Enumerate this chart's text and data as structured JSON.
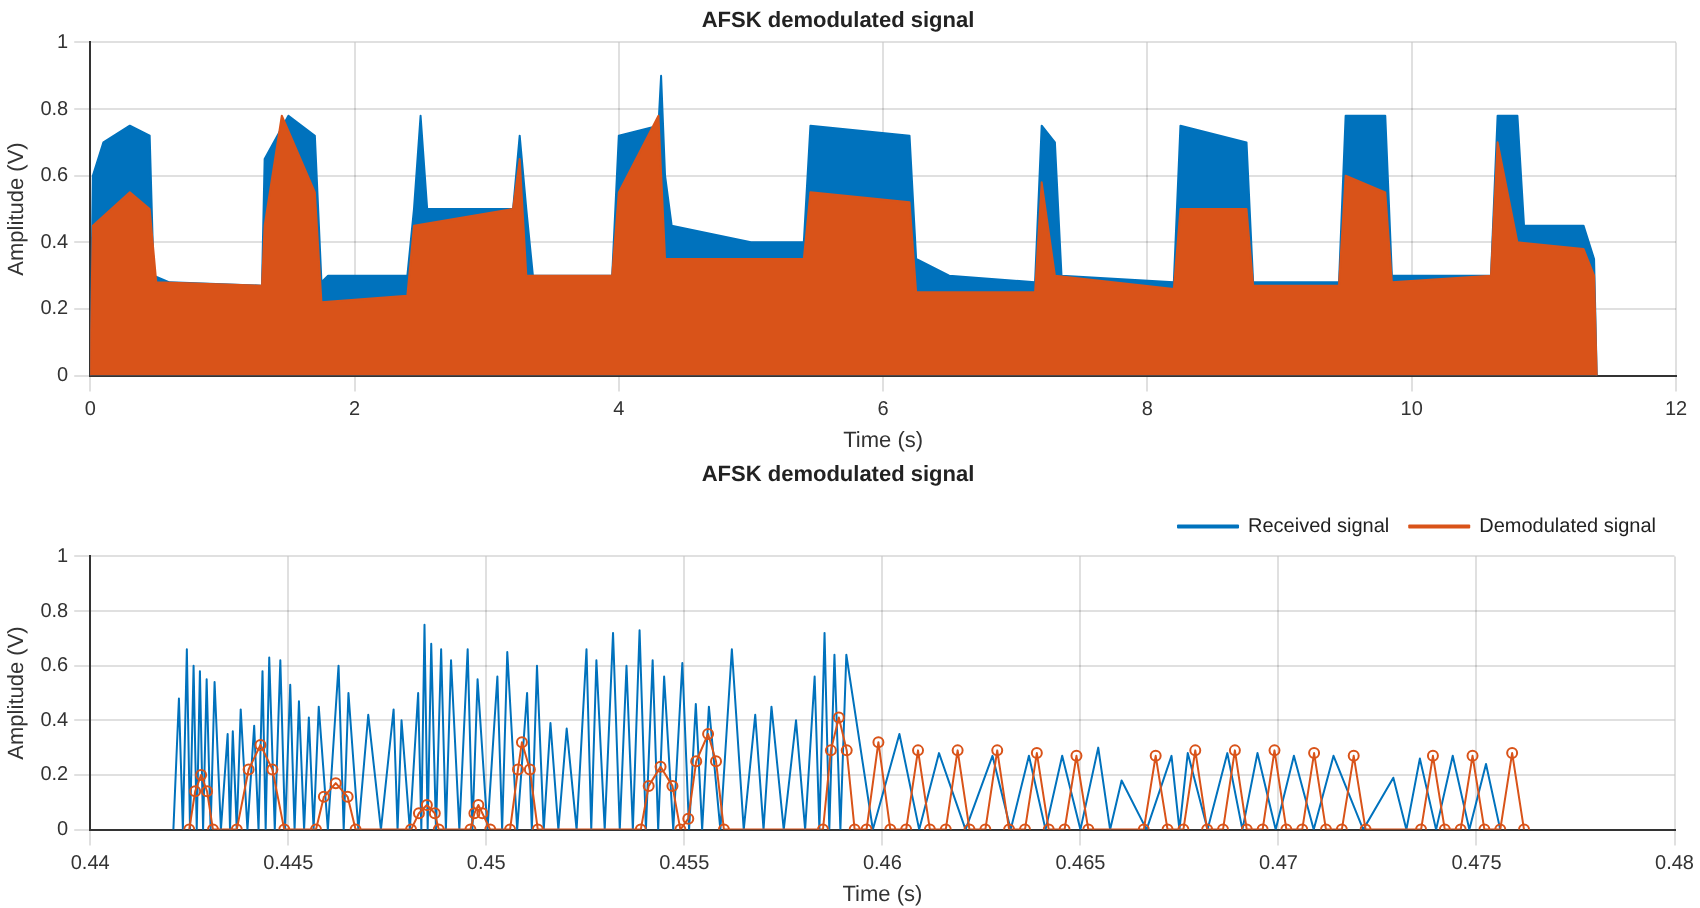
{
  "chart_data": [
    {
      "type": "area",
      "title": "AFSK demodulated signal",
      "xlabel": "Time (s)",
      "ylabel": "Amplitude (V)",
      "xlim": [
        0,
        12
      ],
      "xticks": [
        0,
        2,
        4,
        6,
        8,
        10,
        12
      ],
      "ylim": [
        0,
        1
      ],
      "yticks": [
        0,
        0.2,
        0.4,
        0.6,
        0.8,
        1
      ],
      "grid": true,
      "series": [
        {
          "color": "#0072bd",
          "x": [
            0,
            0.02,
            0.1,
            0.3,
            0.45,
            0.48,
            0.6,
            1.3,
            1.32,
            1.5,
            1.7,
            1.75,
            1.8,
            2.4,
            2.45,
            2.5,
            2.55,
            3.2,
            3.25,
            3.3,
            3.35,
            3.95,
            4.0,
            4.3,
            4.32,
            4.35,
            4.4,
            5.0,
            5.4,
            5.45,
            6.2,
            6.25,
            6.5,
            7.15,
            7.2,
            7.3,
            7.35,
            8.2,
            8.25,
            8.75,
            8.8,
            9.45,
            9.5,
            9.8,
            9.85,
            10.6,
            10.65,
            10.8,
            10.85,
            11.3,
            11.38,
            11.4
          ],
          "values": [
            0,
            0.6,
            0.7,
            0.75,
            0.72,
            0.3,
            0.28,
            0.27,
            0.65,
            0.78,
            0.72,
            0.28,
            0.3,
            0.3,
            0.5,
            0.78,
            0.5,
            0.5,
            0.72,
            0.5,
            0.3,
            0.3,
            0.72,
            0.75,
            0.9,
            0.6,
            0.45,
            0.4,
            0.4,
            0.75,
            0.72,
            0.35,
            0.3,
            0.28,
            0.75,
            0.7,
            0.3,
            0.28,
            0.75,
            0.7,
            0.28,
            0.28,
            0.78,
            0.78,
            0.3,
            0.3,
            0.78,
            0.78,
            0.45,
            0.45,
            0.35,
            0
          ]
        },
        {
          "color": "#d95319",
          "x": [
            0,
            0.02,
            0.3,
            0.45,
            0.5,
            1.3,
            1.32,
            1.45,
            1.7,
            1.75,
            2.4,
            2.45,
            3.2,
            3.25,
            3.3,
            3.95,
            4.0,
            4.3,
            4.35,
            5.4,
            5.45,
            6.2,
            6.25,
            7.15,
            7.2,
            7.3,
            8.2,
            8.25,
            8.75,
            8.8,
            9.45,
            9.5,
            9.8,
            9.85,
            10.6,
            10.65,
            10.8,
            11.3,
            11.38,
            11.4
          ],
          "values": [
            0,
            0.45,
            0.55,
            0.5,
            0.28,
            0.27,
            0.45,
            0.78,
            0.55,
            0.22,
            0.24,
            0.45,
            0.5,
            0.65,
            0.3,
            0.3,
            0.55,
            0.78,
            0.35,
            0.35,
            0.55,
            0.52,
            0.25,
            0.25,
            0.58,
            0.3,
            0.26,
            0.5,
            0.5,
            0.27,
            0.27,
            0.6,
            0.55,
            0.28,
            0.3,
            0.7,
            0.4,
            0.38,
            0.3,
            0
          ]
        }
      ]
    },
    {
      "type": "line",
      "title": "AFSK demodulated signal",
      "xlabel": "Time (s)",
      "ylabel": "Amplitude (V)",
      "xlim": [
        0.44,
        0.48
      ],
      "xticks": [
        0.44,
        0.445,
        0.45,
        0.455,
        0.46,
        0.465,
        0.47,
        0.475,
        0.48
      ],
      "ylim": [
        0,
        1
      ],
      "yticks": [
        0,
        0.2,
        0.4,
        0.6,
        0.8,
        1
      ],
      "grid": true,
      "legend": "top right",
      "series": [
        {
          "name": "Received signal",
          "color": "#0072bd",
          "marker": "none",
          "x": [
            0.4421,
            0.44224,
            0.44234,
            0.44244,
            0.44252,
            0.44261,
            0.44269,
            0.44277,
            0.44285,
            0.44294,
            0.44304,
            0.44314,
            0.4433,
            0.44347,
            0.44353,
            0.4436,
            0.4437,
            0.4438,
            0.44397,
            0.44414,
            0.44425,
            0.44435,
            0.44443,
            0.44452,
            0.44466,
            0.4448,
            0.44492,
            0.44505,
            0.44516,
            0.44527,
            0.4454,
            0.44552,
            0.44564,
            0.44577,
            0.446,
            0.44627,
            0.4464,
            0.44652,
            0.44677,
            0.44702,
            0.44734,
            0.44766,
            0.44776,
            0.44786,
            0.44807,
            0.44828,
            0.44836,
            0.44844,
            0.44852,
            0.44861,
            0.44873,
            0.44886,
            0.44898,
            0.44911,
            0.44932,
            0.44953,
            0.44965,
            0.44978,
            0.45003,
            0.45028,
            0.4504,
            0.45053,
            0.45078,
            0.45103,
            0.45115,
            0.45128,
            0.45145,
            0.45162,
            0.45182,
            0.45203,
            0.45228,
            0.45253,
            0.45265,
            0.45278,
            0.45299,
            0.4532,
            0.45337,
            0.45354,
            0.4537,
            0.45387,
            0.45403,
            0.4542,
            0.45434,
            0.45449,
            0.45472,
            0.45495,
            0.45512,
            0.45529,
            0.45545,
            0.45562,
            0.45591,
            0.4562,
            0.4565,
            0.45679,
            0.457,
            0.4572,
            0.45751,
            0.45782,
            0.45805,
            0.45829,
            0.45841,
            0.45854,
            0.45866,
            0.45879,
            0.45894,
            0.45909,
            0.45976,
            0.46043,
            0.46093,
            0.46143,
            0.4621,
            0.46278,
            0.46324,
            0.4637,
            0.46412,
            0.46454,
            0.465,
            0.46545,
            0.46575,
            0.46604,
            0.46667,
            0.4673,
            0.4675,
            0.46771,
            0.46821,
            0.46871,
            0.46909,
            0.46947,
            0.46993,
            0.47039,
            0.47089,
            0.47139,
            0.47214,
            0.4729,
            0.47323,
            0.47357,
            0.47398,
            0.4744,
            0.47482,
            0.47524,
            0.4756
          ],
          "values": [
            0,
            0.48,
            0,
            0.66,
            0,
            0.6,
            0,
            0.58,
            0,
            0.55,
            0,
            0.54,
            0,
            0.35,
            0,
            0.36,
            0,
            0.44,
            0,
            0.38,
            0,
            0.58,
            0,
            0.63,
            0,
            0.62,
            0,
            0.53,
            0,
            0.47,
            0,
            0.41,
            0,
            0.45,
            0,
            0.6,
            0,
            0.5,
            0,
            0.42,
            0,
            0.44,
            0,
            0.4,
            0,
            0.5,
            0,
            0.75,
            0,
            0.68,
            0,
            0.66,
            0,
            0.62,
            0,
            0.66,
            0,
            0.55,
            0,
            0.56,
            0,
            0.65,
            0,
            0.5,
            0,
            0.6,
            0,
            0.39,
            0,
            0.37,
            0,
            0.66,
            0,
            0.62,
            0,
            0.72,
            0,
            0.6,
            0,
            0.73,
            0,
            0.62,
            0,
            0.56,
            0,
            0.61,
            0,
            0.46,
            0,
            0.45,
            0,
            0.66,
            0,
            0.42,
            0,
            0.45,
            0,
            0.4,
            0,
            0.56,
            0,
            0.72,
            0,
            0.64,
            0,
            0.64,
            0,
            0.35,
            0,
            0.28,
            0,
            0.27,
            0,
            0.27,
            0,
            0.27,
            0,
            0.3,
            0,
            0.18,
            0,
            0.27,
            0,
            0.28,
            0,
            0.28,
            0,
            0.28,
            0,
            0.27,
            0,
            0.27,
            0,
            0.19,
            0,
            0.26,
            0,
            0.27,
            0,
            0.24,
            0
          ]
        },
        {
          "name": "Demodulated signal",
          "color": "#d95319",
          "marker": "circle",
          "x": [
            0.4425,
            0.44265,
            0.4428,
            0.44295,
            0.4431,
            0.4437,
            0.444,
            0.4443,
            0.4446,
            0.4449,
            0.4457,
            0.4459,
            0.4462,
            0.4465,
            0.4467,
            0.4481,
            0.4483,
            0.4485,
            0.4487,
            0.4488,
            0.4496,
            0.4497,
            0.4498,
            0.4499,
            0.4501,
            0.4506,
            0.4508,
            0.4509,
            0.4511,
            0.4513,
            0.4539,
            0.4541,
            0.4544,
            0.4547,
            0.4549,
            0.4551,
            0.4553,
            0.4556,
            0.4558,
            0.456,
            0.4585,
            0.4587,
            0.4589,
            0.4591,
            0.4593,
            0.4596,
            0.4599,
            0.4602,
            0.4606,
            0.4609,
            0.4612,
            0.4616,
            0.4619,
            0.4622,
            0.4626,
            0.4629,
            0.4632,
            0.4636,
            0.4639,
            0.4642,
            0.4646,
            0.4649,
            0.4652,
            0.4666,
            0.4669,
            0.4672,
            0.4676,
            0.4679,
            0.4682,
            0.4686,
            0.4689,
            0.4692,
            0.4696,
            0.4699,
            0.4702,
            0.4706,
            0.4709,
            0.4712,
            0.4716,
            0.4719,
            0.4722,
            0.4736,
            0.4739,
            0.4742,
            0.4746,
            0.4749,
            0.4752,
            0.4756,
            0.4759,
            0.4762
          ],
          "values": [
            0,
            0.14,
            0.2,
            0.14,
            0,
            0,
            0.22,
            0.31,
            0.22,
            0,
            0,
            0.12,
            0.17,
            0.12,
            0,
            0,
            0.06,
            0.09,
            0.06,
            0,
            0,
            0.06,
            0.09,
            0.06,
            0,
            0,
            0.22,
            0.32,
            0.22,
            0,
            0,
            0.16,
            0.23,
            0.16,
            0,
            0.04,
            0.25,
            0.35,
            0.25,
            0,
            0,
            0.29,
            0.41,
            0.29,
            0,
            0,
            0.32,
            0,
            0,
            0.29,
            0,
            0,
            0.29,
            0,
            0,
            0.29,
            0,
            0,
            0.28,
            0,
            0,
            0.27,
            0,
            0,
            0.27,
            0,
            0,
            0.29,
            0,
            0,
            0.29,
            0,
            0,
            0.29,
            0,
            0,
            0.28,
            0,
            0,
            0.27,
            0,
            0,
            0.27,
            0,
            0,
            0.27,
            0,
            0,
            0.28,
            0
          ]
        }
      ]
    }
  ]
}
